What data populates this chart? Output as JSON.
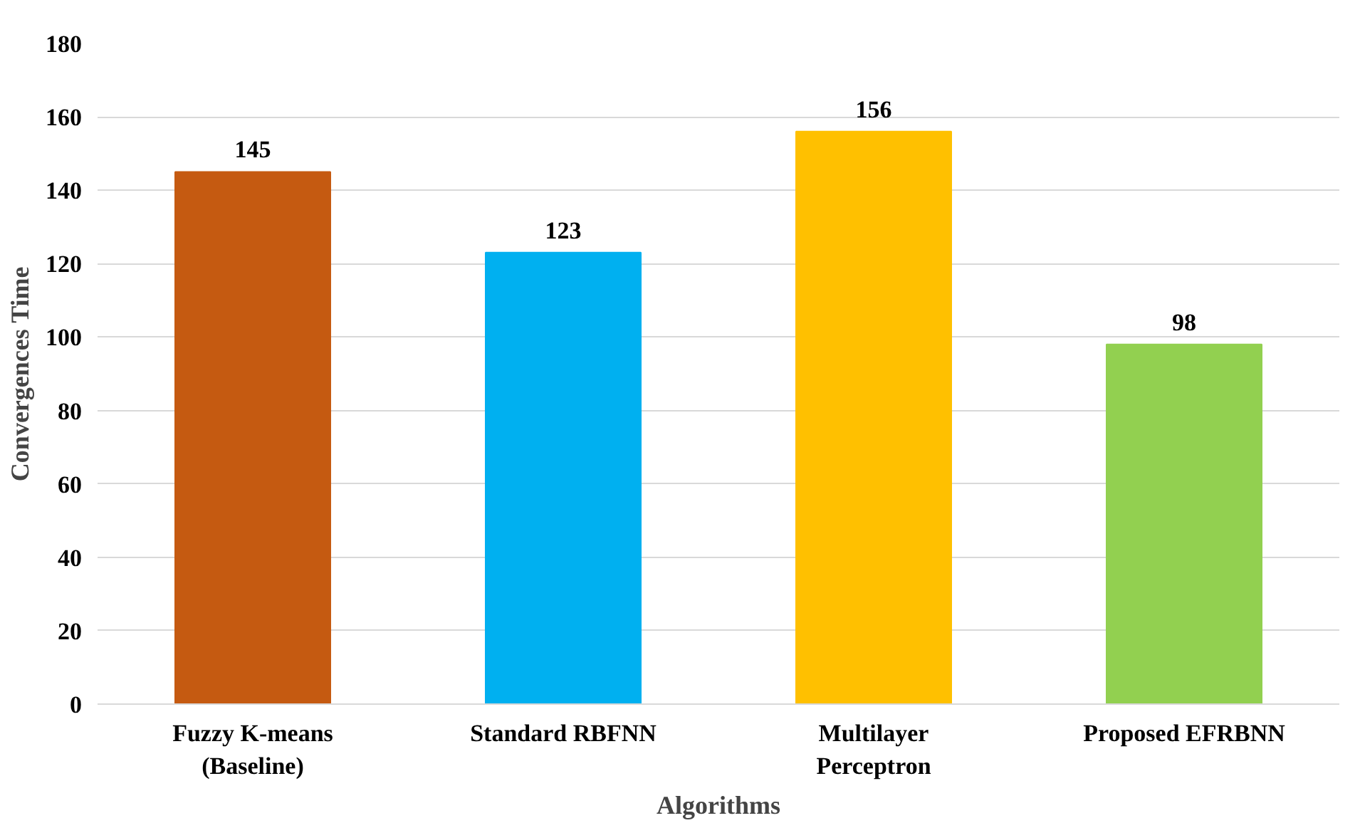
{
  "chart_data": {
    "type": "bar",
    "xlabel": "Algorithms",
    "ylabel": "Convergences Time",
    "categories": [
      "Fuzzy K-means\n(Baseline)",
      "Standard RBFNN",
      "Multilayer\nPerceptron",
      "Proposed EFRBNN"
    ],
    "values": [
      145,
      123,
      156,
      98
    ],
    "colors": [
      "#c55a11",
      "#00b0f0",
      "#ffc000",
      "#92d050"
    ],
    "ylim": [
      0,
      180
    ],
    "yticks": [
      0,
      20,
      40,
      60,
      80,
      100,
      120,
      140,
      160,
      180
    ],
    "grid": "y",
    "data_labels": true
  }
}
